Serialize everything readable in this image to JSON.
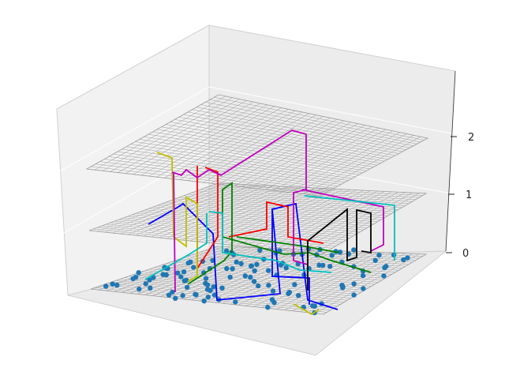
{
  "chart_data": {
    "type": "3d-line-scatter",
    "title": "",
    "xlabel": "",
    "ylabel": "",
    "zlabel": "",
    "x_ticks": [],
    "y_ticks": [],
    "z_ticks": [
      "0",
      "1",
      "2"
    ],
    "zlim": [
      0,
      3
    ],
    "grid": true,
    "layer_planes": [
      0,
      1,
      2
    ],
    "pane_color": "#f2f2f2",
    "point_color": "#1f77b4",
    "series_colors": [
      "#0000ff",
      "#ff0000",
      "#008000",
      "#bfbf00",
      "#bf00bf",
      "#00bfbf",
      "#000000"
    ],
    "scatter_count": 120
  }
}
